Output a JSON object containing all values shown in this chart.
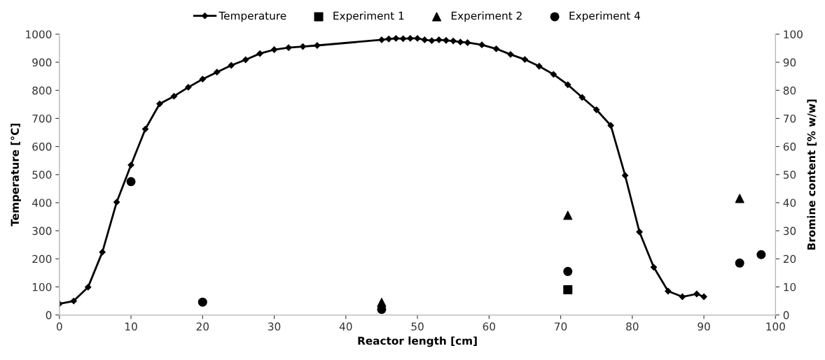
{
  "chart_data": {
    "type": "line",
    "xlabel": "Reactor length [cm]",
    "ylabel": "Temperature [°C]",
    "y2label": "Bromine content [% w/w]",
    "xlim": [
      0,
      100
    ],
    "xticks": [
      0,
      10,
      20,
      30,
      40,
      50,
      60,
      70,
      80,
      90,
      100
    ],
    "ylim": [
      0,
      1000
    ],
    "yticks": [
      0,
      100,
      200,
      300,
      400,
      500,
      600,
      700,
      800,
      900,
      1000
    ],
    "y2lim": [
      0,
      100
    ],
    "y2ticks": [
      0,
      10,
      20,
      30,
      40,
      50,
      60,
      70,
      80,
      90,
      100
    ],
    "grid": false,
    "legend": "top",
    "series": [
      {
        "name": "Temperature",
        "color": "#000000",
        "marker": "diamond",
        "line_style": "solid",
        "x": [
          0,
          2,
          4,
          6,
          8,
          10,
          12,
          14,
          16,
          18,
          20,
          22,
          24,
          26,
          28,
          30,
          32,
          34,
          36,
          45,
          46,
          47,
          48,
          49,
          50,
          51,
          52,
          53,
          54,
          55,
          56,
          57,
          59,
          61,
          63,
          65,
          67,
          69,
          71,
          73,
          75,
          77,
          79,
          81,
          83,
          85,
          87,
          89,
          90
        ],
        "values": [
          40,
          50,
          99,
          224,
          402,
          534,
          662,
          752,
          779,
          811,
          840,
          865,
          889,
          909,
          931,
          945,
          952,
          956,
          960,
          980,
          983,
          985,
          984,
          985,
          985,
          980,
          977,
          980,
          978,
          976,
          972,
          970,
          962,
          948,
          928,
          910,
          886,
          857,
          820,
          775,
          731,
          675,
          497,
          296,
          170,
          85,
          65,
          75,
          65
        ]
      },
      {
        "name": "Experiment 1",
        "type": "scatter",
        "axis": "y2",
        "color": "#000000",
        "marker": "square",
        "x": [
          71
        ],
        "values": [
          9
        ]
      },
      {
        "name": "Experiment 2",
        "type": "scatter",
        "axis": "y2",
        "color": "#000000",
        "marker": "triangle",
        "x": [
          45,
          71,
          95
        ],
        "values": [
          4.5,
          35.5,
          41.5
        ]
      },
      {
        "name": "Experiment 4",
        "type": "scatter",
        "axis": "y2",
        "color": "#000000",
        "marker": "circle",
        "x": [
          10,
          20,
          45,
          71,
          95,
          98
        ],
        "values": [
          47.5,
          4.6,
          2,
          15.5,
          18.5,
          21.5
        ]
      }
    ]
  }
}
